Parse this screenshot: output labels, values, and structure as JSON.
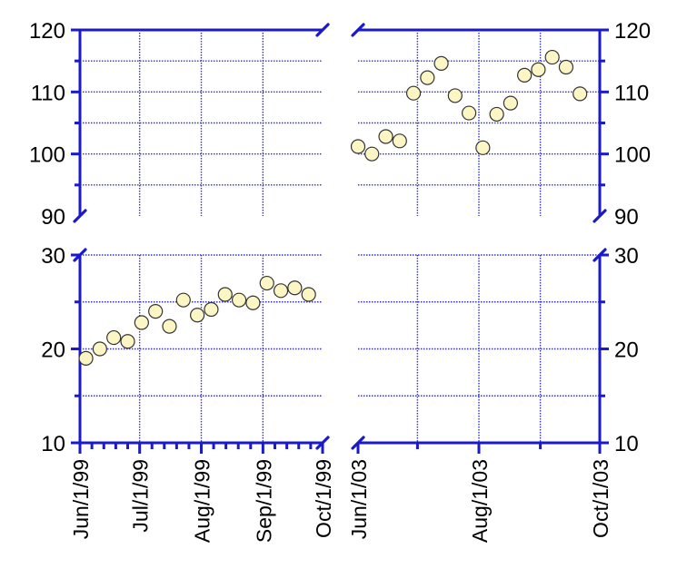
{
  "chart_data": {
    "type": "scatter",
    "layout": "broken-axis-2x2",
    "colors": {
      "axis": "#1a1acc",
      "grid": "#3434cc",
      "marker_fill": "#fbf6c3",
      "marker_stroke": "#333333"
    },
    "grid": true,
    "y_upper": {
      "range": [
        90,
        120
      ],
      "ticks": [
        "90",
        "100",
        "110",
        "120"
      ]
    },
    "y_lower": {
      "range": [
        10,
        30
      ],
      "ticks": [
        "10",
        "20",
        "30"
      ]
    },
    "x_left": {
      "range": [
        "1999-06-01",
        "1999-10-01"
      ],
      "tick_labels": [
        "Jun/1/99",
        "Jul/1/99",
        "Aug/1/99",
        "Sep/1/99",
        "Oct/1/99"
      ],
      "tick_dates": [
        "1999-06-01",
        "1999-07-01",
        "1999-08-01",
        "1999-09-01",
        "1999-10-01"
      ]
    },
    "x_right": {
      "range": [
        "2003-06-01",
        "2003-10-01"
      ],
      "tick_labels": [
        "Jun/1/03",
        "Aug/1/03",
        "Oct/1/03"
      ],
      "tick_dates": [
        "2003-06-01",
        "2003-08-01",
        "2003-10-01"
      ]
    },
    "series_left": {
      "x": [
        "1999-06-04",
        "1999-06-11",
        "1999-06-18",
        "1999-06-25",
        "1999-07-02",
        "1999-07-09",
        "1999-07-16",
        "1999-07-23",
        "1999-07-30",
        "1999-08-06",
        "1999-08-13",
        "1999-08-20",
        "1999-08-27",
        "1999-09-03",
        "1999-09-10",
        "1999-09-17",
        "1999-09-24"
      ],
      "y": [
        19.0,
        20.0,
        21.2,
        20.8,
        22.8,
        24.0,
        22.4,
        25.2,
        23.6,
        24.2,
        25.8,
        25.2,
        24.9,
        27.0,
        26.2,
        26.5,
        25.8
      ]
    },
    "series_right": {
      "x": [
        "2003-06-01",
        "2003-06-08",
        "2003-06-15",
        "2003-06-22",
        "2003-06-29",
        "2003-07-06",
        "2003-07-13",
        "2003-07-20",
        "2003-07-27",
        "2003-08-03",
        "2003-08-10",
        "2003-08-17",
        "2003-08-24",
        "2003-08-31",
        "2003-09-07",
        "2003-09-14",
        "2003-09-21"
      ],
      "y": [
        101.2,
        100.0,
        102.8,
        102.1,
        109.8,
        112.3,
        114.6,
        109.4,
        106.6,
        101.0,
        106.4,
        108.2,
        112.7,
        113.6,
        115.6,
        114.0,
        109.7
      ]
    }
  }
}
